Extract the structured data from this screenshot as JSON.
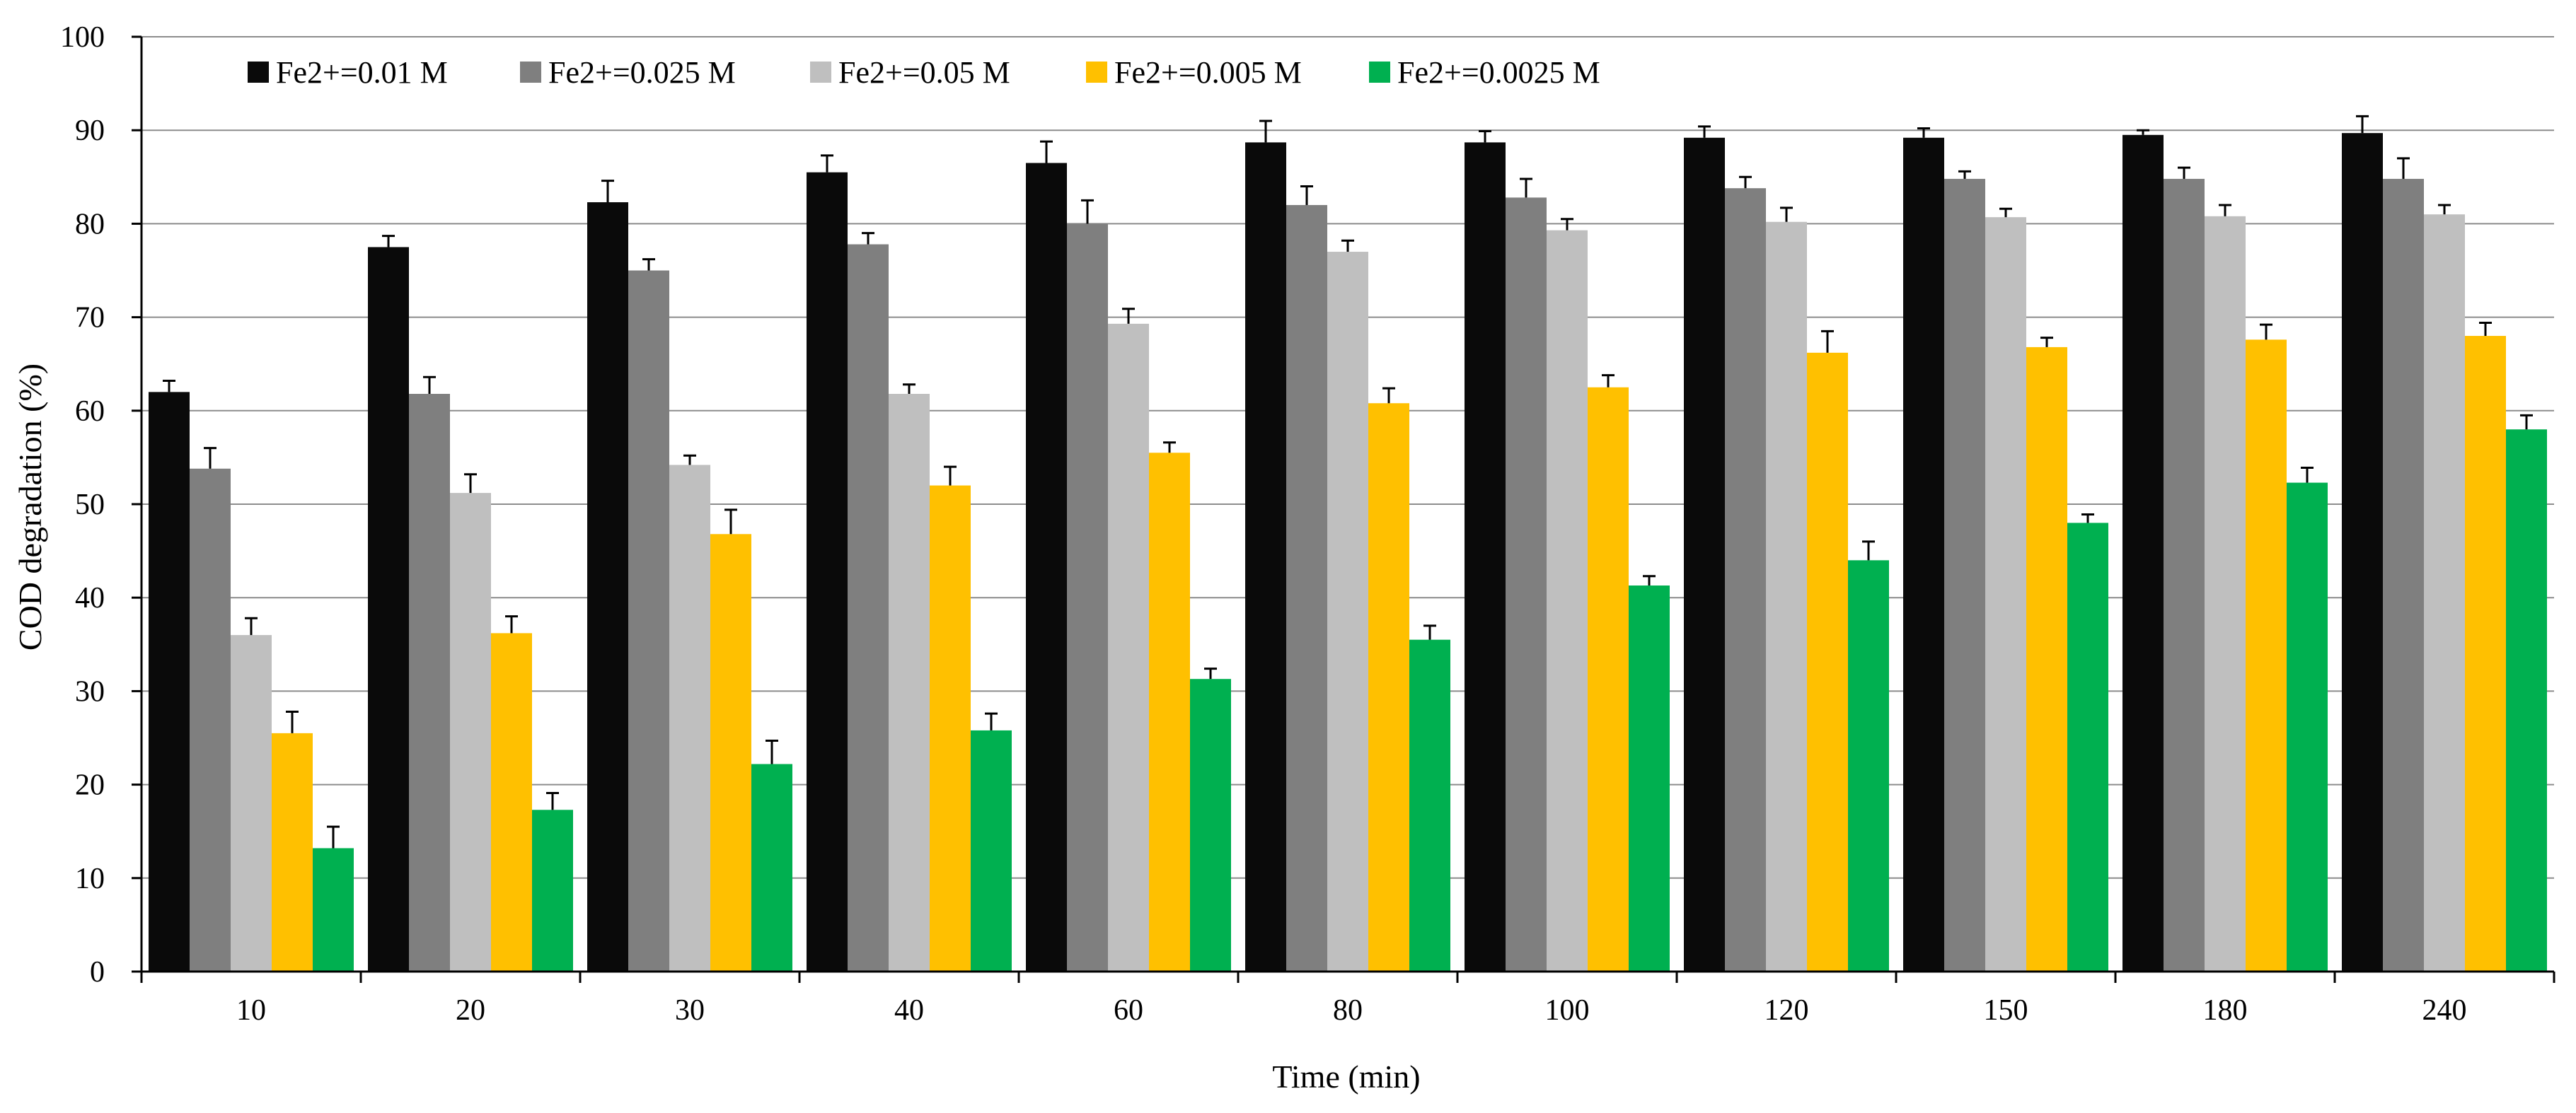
{
  "chart_data": {
    "type": "bar",
    "title": "",
    "xlabel": "Time (min)",
    "ylabel": "COD degradation (%)",
    "ylim": [
      0,
      100
    ],
    "y_ticks": [
      "0",
      "10",
      "20",
      "30",
      "40",
      "50",
      "60",
      "70",
      "80",
      "90",
      "100"
    ],
    "grid": true,
    "legend_position": "top-left",
    "categories": [
      "10",
      "20",
      "30",
      "40",
      "60",
      "80",
      "100",
      "120",
      "150",
      "180",
      "240"
    ],
    "series": [
      {
        "name": "Fe2+=0.01 M",
        "color": "#0a0a0a",
        "values": [
          62,
          77.5,
          82.3,
          85.5,
          86.5,
          88.7,
          88.7,
          89.2,
          89.2,
          89.5,
          89.7
        ],
        "errors": [
          1.2,
          1.2,
          2.3,
          1.8,
          2.3,
          2.3,
          1.2,
          1.2,
          1.0,
          0.5,
          1.8
        ]
      },
      {
        "name": "Fe2+=0.025 M",
        "color": "#7f7f7f",
        "values": [
          53.8,
          61.8,
          75,
          77.8,
          80,
          82,
          82.8,
          83.8,
          84.8,
          84.8,
          84.8
        ],
        "errors": [
          2.2,
          1.8,
          1.2,
          1.2,
          2.5,
          2.0,
          2.0,
          1.2,
          0.8,
          1.2,
          2.2
        ]
      },
      {
        "name": "Fe2+=0.05 M",
        "color": "#bfbfbf",
        "values": [
          36,
          51.2,
          54.2,
          61.8,
          69.3,
          77,
          79.3,
          80.2,
          80.7,
          80.8,
          81
        ],
        "errors": [
          1.8,
          2.0,
          1.0,
          1.0,
          1.6,
          1.2,
          1.2,
          1.5,
          0.9,
          1.2,
          1.0
        ]
      },
      {
        "name": "Fe2+=0.005 M",
        "color": "#ffc000",
        "values": [
          25.5,
          36.2,
          46.8,
          52,
          55.5,
          60.8,
          62.5,
          66.2,
          66.8,
          67.6,
          68
        ],
        "errors": [
          2.3,
          1.8,
          2.6,
          2.0,
          1.1,
          1.6,
          1.3,
          2.3,
          1.0,
          1.6,
          1.4
        ]
      },
      {
        "name": "Fe2+=0.0025 M",
        "color": "#00b050",
        "values": [
          13.2,
          17.3,
          22.2,
          25.8,
          31.3,
          35.5,
          41.3,
          44,
          48,
          52.3,
          58
        ],
        "errors": [
          2.3,
          1.8,
          2.5,
          1.8,
          1.1,
          1.5,
          1.0,
          2.0,
          0.9,
          1.6,
          1.5
        ]
      }
    ]
  }
}
